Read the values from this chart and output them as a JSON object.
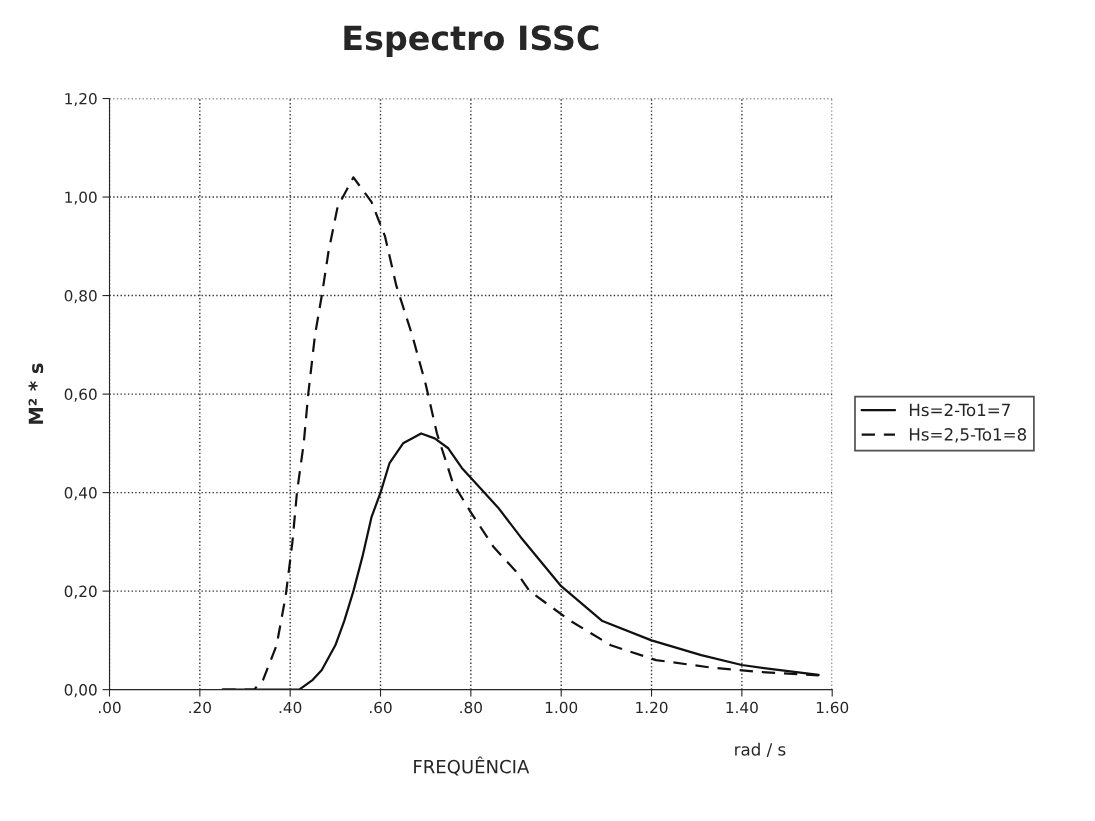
{
  "chart_data": {
    "type": "line",
    "title": "Espectro ISSC",
    "xlabel": "FREQUÊNCIA",
    "ylabel": "M² * s",
    "annotations": [
      "rad / s"
    ],
    "xlim": [
      0,
      1.6
    ],
    "ylim": [
      0,
      1.2
    ],
    "xticks": [
      {
        "value": 0,
        "label": ".00"
      },
      {
        "value": 0.2,
        "label": ".20"
      },
      {
        "value": 0.4,
        "label": ".40"
      },
      {
        "value": 0.6,
        "label": ".60"
      },
      {
        "value": 0.8,
        "label": ".80"
      },
      {
        "value": 1.0,
        "label": "1.00"
      },
      {
        "value": 1.2,
        "label": "1.20"
      },
      {
        "value": 1.4,
        "label": "1.40"
      },
      {
        "value": 1.6,
        "label": "1.60"
      }
    ],
    "yticks": [
      {
        "value": 0,
        "label": "0,00"
      },
      {
        "value": 0.2,
        "label": "0,20"
      },
      {
        "value": 0.4,
        "label": "0,40"
      },
      {
        "value": 0.6,
        "label": "0,60"
      },
      {
        "value": 0.8,
        "label": "0,80"
      },
      {
        "value": 1.0,
        "label": "1,00"
      },
      {
        "value": 1.2,
        "label": "1,20"
      }
    ],
    "grid": true,
    "legend": "right",
    "series": [
      {
        "name": "Hs=2-To1=7",
        "color": "#111111",
        "line_style": "solid",
        "x": [
          0.25,
          0.42,
          0.45,
          0.47,
          0.5,
          0.52,
          0.54,
          0.56,
          0.58,
          0.6,
          0.62,
          0.65,
          0.69,
          0.72,
          0.75,
          0.78,
          0.81,
          0.86,
          0.91,
          1.0,
          1.09,
          1.2,
          1.31,
          1.4,
          1.48,
          1.57
        ],
        "values": [
          0,
          0,
          0.02,
          0.04,
          0.09,
          0.14,
          0.2,
          0.27,
          0.35,
          0.4,
          0.46,
          0.5,
          0.52,
          0.51,
          0.49,
          0.45,
          0.42,
          0.37,
          0.31,
          0.21,
          0.14,
          0.1,
          0.07,
          0.05,
          0.04,
          0.03
        ]
      },
      {
        "name": "Hs=2,5-To1=8",
        "color": "#111111",
        "line_style": "dashed",
        "x": [
          0.25,
          0.32,
          0.34,
          0.37,
          0.39,
          0.405,
          0.415,
          0.43,
          0.44,
          0.455,
          0.47,
          0.485,
          0.505,
          0.54,
          0.58,
          0.61,
          0.635,
          0.67,
          0.7,
          0.725,
          0.76,
          0.8,
          0.85,
          0.9,
          0.93,
          1.02,
          1.11,
          1.21,
          1.33,
          1.44,
          1.57
        ],
        "values": [
          0,
          0,
          0.02,
          0.09,
          0.19,
          0.3,
          0.4,
          0.5,
          0.6,
          0.72,
          0.8,
          0.89,
          0.98,
          1.04,
          0.99,
          0.92,
          0.82,
          0.72,
          0.62,
          0.52,
          0.42,
          0.36,
          0.29,
          0.24,
          0.2,
          0.14,
          0.09,
          0.06,
          0.045,
          0.036,
          0.029
        ]
      }
    ]
  }
}
